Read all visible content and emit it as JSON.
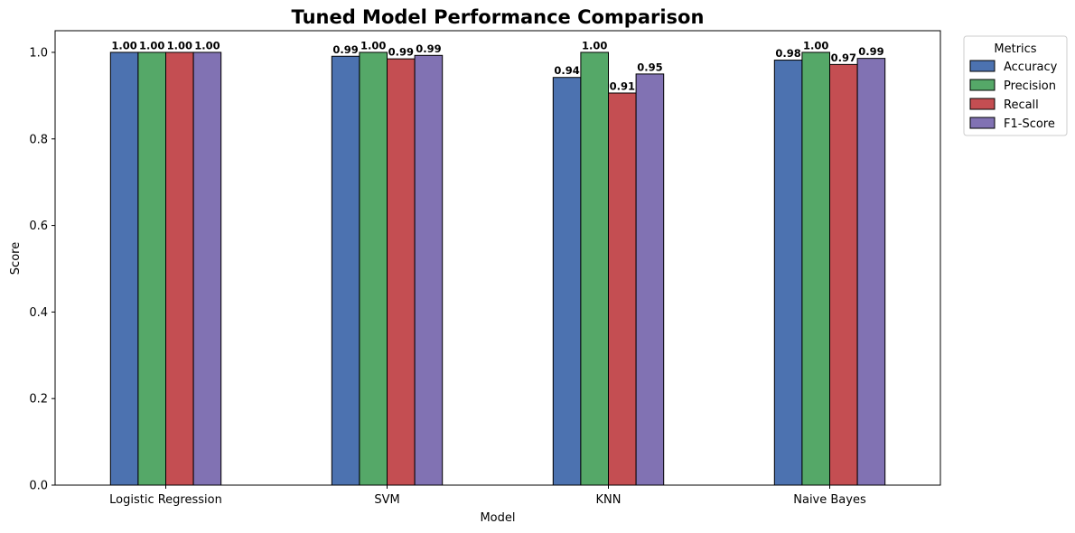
{
  "chart_data": {
    "type": "bar",
    "title": "Tuned Model Performance Comparison",
    "xlabel": "Model",
    "ylabel": "Score",
    "ylim": [
      0,
      1.05
    ],
    "yticks": [
      "0.0",
      "0.2",
      "0.4",
      "0.6",
      "0.8",
      "1.0"
    ],
    "categories": [
      "Logistic Regression",
      "SVM",
      "KNN",
      "Naive Bayes"
    ],
    "series": [
      {
        "name": "Accuracy",
        "color": "#4c72b0",
        "values": [
          1.0,
          0.991,
          0.942,
          0.982
        ],
        "labels": [
          "1.00",
          "0.99",
          "0.94",
          "0.98"
        ]
      },
      {
        "name": "Precision",
        "color": "#55a868",
        "values": [
          1.0,
          1.0,
          1.0,
          1.0
        ],
        "labels": [
          "1.00",
          "1.00",
          "1.00",
          "1.00"
        ]
      },
      {
        "name": "Recall",
        "color": "#c44e52",
        "values": [
          1.0,
          0.985,
          0.906,
          0.972
        ],
        "labels": [
          "1.00",
          "0.99",
          "0.91",
          "0.97"
        ]
      },
      {
        "name": "F1-Score",
        "color": "#8172b3",
        "values": [
          1.0,
          0.993,
          0.95,
          0.986
        ],
        "labels": [
          "1.00",
          "0.99",
          "0.95",
          "0.99"
        ]
      }
    ],
    "legend": {
      "title": "Metrics",
      "placement": "outside-top-right"
    },
    "grid": false
  }
}
